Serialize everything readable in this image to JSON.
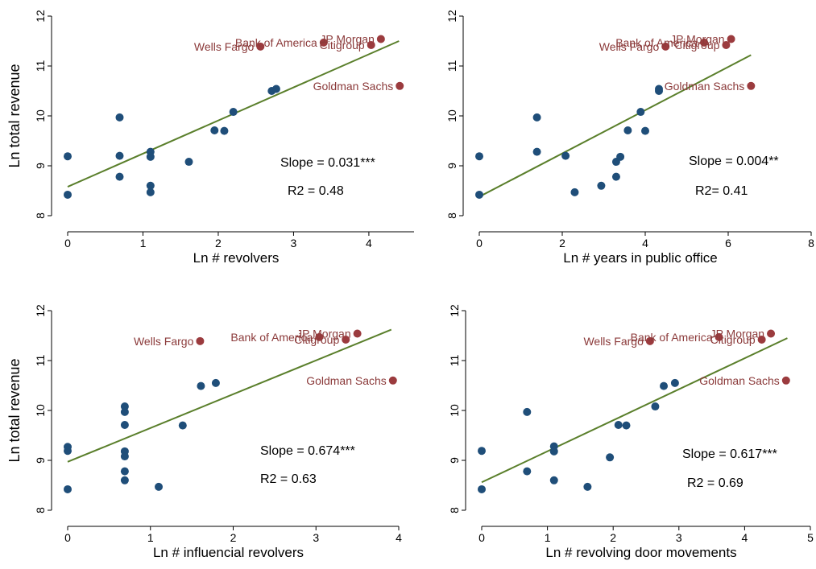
{
  "figure": {
    "colors": {
      "point": "#1f4e79",
      "highlight": "#9b3b3e",
      "fit_line": "#5a7f2b",
      "bank_label": "#8b3a3a",
      "axis": "#000000"
    }
  },
  "chart_data": [
    {
      "type": "scatter",
      "title": "",
      "xlabel": "Ln # revolvers",
      "ylabel": "Ln total revenue",
      "xlim": [
        0,
        4.6
      ],
      "ylim": [
        8,
        12
      ],
      "xticks": [
        0,
        1,
        2,
        3,
        4
      ],
      "yticks": [
        8,
        9,
        10,
        11,
        12
      ],
      "grid": false,
      "slope_text": "Slope = 0.031***",
      "r2_text": "R2 = 0.48",
      "fit_line": {
        "x": [
          0,
          4.4
        ],
        "y": [
          8.58,
          11.5
        ]
      },
      "points": [
        {
          "x": 0,
          "y": 9.19
        },
        {
          "x": 0,
          "y": 8.42
        },
        {
          "x": 0.69,
          "y": 9.97
        },
        {
          "x": 0.69,
          "y": 9.2
        },
        {
          "x": 0.69,
          "y": 8.78
        },
        {
          "x": 1.1,
          "y": 9.28
        },
        {
          "x": 1.1,
          "y": 9.18
        },
        {
          "x": 1.1,
          "y": 8.6
        },
        {
          "x": 1.1,
          "y": 8.47
        },
        {
          "x": 1.61,
          "y": 9.08
        },
        {
          "x": 1.95,
          "y": 9.71
        },
        {
          "x": 2.08,
          "y": 9.7
        },
        {
          "x": 2.2,
          "y": 10.08
        },
        {
          "x": 2.71,
          "y": 10.5
        },
        {
          "x": 2.77,
          "y": 10.54
        }
      ],
      "banks": [
        {
          "name": "Wells Fargo",
          "x": 2.56,
          "y": 11.39,
          "label_pos": "left"
        },
        {
          "name": "Bank of America",
          "x": 3.4,
          "y": 11.47,
          "label_pos": "left"
        },
        {
          "name": "JP Morgan",
          "x": 4.16,
          "y": 11.54,
          "label_pos": "left"
        },
        {
          "name": "Citigroup",
          "x": 4.03,
          "y": 11.42,
          "label_pos": "left"
        },
        {
          "name": "Goldman Sachs",
          "x": 4.41,
          "y": 10.6,
          "label_pos": "left"
        }
      ]
    },
    {
      "type": "scatter",
      "title": "",
      "xlabel": "Ln # years in public office",
      "ylabel": "",
      "xlim": [
        0,
        8
      ],
      "ylim": [
        8,
        12
      ],
      "xticks": [
        0,
        2,
        4,
        6,
        8
      ],
      "yticks": [
        8,
        9,
        10,
        11,
        12
      ],
      "grid": false,
      "slope_text": "Slope = 0.004**",
      "r2_text": "R2= 0.41",
      "fit_line": {
        "x": [
          0,
          6.55
        ],
        "y": [
          8.38,
          11.22
        ]
      },
      "points": [
        {
          "x": 0,
          "y": 9.19
        },
        {
          "x": 0,
          "y": 8.42
        },
        {
          "x": 1.39,
          "y": 9.97
        },
        {
          "x": 1.39,
          "y": 9.28
        },
        {
          "x": 2.08,
          "y": 9.2
        },
        {
          "x": 2.3,
          "y": 8.47
        },
        {
          "x": 2.94,
          "y": 8.6
        },
        {
          "x": 3.3,
          "y": 8.78
        },
        {
          "x": 3.3,
          "y": 9.08
        },
        {
          "x": 3.4,
          "y": 9.18
        },
        {
          "x": 3.58,
          "y": 9.71
        },
        {
          "x": 3.89,
          "y": 10.08
        },
        {
          "x": 4.0,
          "y": 9.7
        },
        {
          "x": 4.33,
          "y": 10.5
        },
        {
          "x": 4.33,
          "y": 10.54
        }
      ],
      "banks": [
        {
          "name": "Wells Fargo",
          "x": 4.49,
          "y": 11.39,
          "label_pos": "left"
        },
        {
          "name": "Bank of America",
          "x": 5.42,
          "y": 11.47,
          "label_pos": "left"
        },
        {
          "name": "JP Morgan",
          "x": 6.07,
          "y": 11.54,
          "label_pos": "left"
        },
        {
          "name": "Citigroup",
          "x": 5.95,
          "y": 11.42,
          "label_pos": "left"
        },
        {
          "name": "Goldman Sachs",
          "x": 6.55,
          "y": 10.6,
          "label_pos": "left"
        }
      ]
    },
    {
      "type": "scatter",
      "title": "",
      "xlabel": "Ln # influencial revolvers",
      "ylabel": "Ln total revenue",
      "xlim": [
        0,
        4
      ],
      "ylim": [
        8,
        12
      ],
      "xticks": [
        0,
        1,
        2,
        3,
        4
      ],
      "yticks": [
        8,
        9,
        10,
        11,
        12
      ],
      "grid": false,
      "slope_text": "Slope = 0.674***",
      "r2_text": "R2 = 0.63",
      "fit_line": {
        "x": [
          0,
          3.91
        ],
        "y": [
          8.97,
          11.62
        ]
      },
      "points": [
        {
          "x": 0,
          "y": 9.27
        },
        {
          "x": 0,
          "y": 9.19
        },
        {
          "x": 0,
          "y": 8.42
        },
        {
          "x": 0.69,
          "y": 10.08
        },
        {
          "x": 0.69,
          "y": 9.97
        },
        {
          "x": 0.69,
          "y": 9.71
        },
        {
          "x": 0.69,
          "y": 9.18
        },
        {
          "x": 0.69,
          "y": 9.08
        },
        {
          "x": 0.69,
          "y": 8.78
        },
        {
          "x": 0.69,
          "y": 8.6
        },
        {
          "x": 1.1,
          "y": 8.47
        },
        {
          "x": 1.39,
          "y": 9.7
        },
        {
          "x": 1.61,
          "y": 10.49
        },
        {
          "x": 1.79,
          "y": 10.55
        }
      ],
      "banks": [
        {
          "name": "Wells Fargo",
          "x": 1.6,
          "y": 11.39,
          "label_pos": "left"
        },
        {
          "name": "Bank of America",
          "x": 3.04,
          "y": 11.47,
          "label_pos": "left"
        },
        {
          "name": "JP Morgan",
          "x": 3.5,
          "y": 11.54,
          "label_pos": "left"
        },
        {
          "name": "Citigroup",
          "x": 3.36,
          "y": 11.42,
          "label_pos": "left"
        },
        {
          "name": "Goldman Sachs",
          "x": 3.93,
          "y": 10.6,
          "label_pos": "left"
        }
      ]
    },
    {
      "type": "scatter",
      "title": "",
      "xlabel": "Ln # revolving door movements",
      "ylabel": "",
      "xlim": [
        0,
        5
      ],
      "ylim": [
        8,
        12
      ],
      "xticks": [
        0,
        1,
        2,
        3,
        4,
        5
      ],
      "yticks": [
        8,
        9,
        10,
        11,
        12
      ],
      "grid": false,
      "slope_text": "Slope = 0.617***",
      "r2_text": "R2 = 0.69",
      "fit_line": {
        "x": [
          0,
          4.65
        ],
        "y": [
          8.56,
          11.45
        ]
      },
      "points": [
        {
          "x": 0,
          "y": 9.19
        },
        {
          "x": 0,
          "y": 8.42
        },
        {
          "x": 0.69,
          "y": 9.97
        },
        {
          "x": 0.69,
          "y": 8.78
        },
        {
          "x": 1.1,
          "y": 9.28
        },
        {
          "x": 1.1,
          "y": 9.18
        },
        {
          "x": 1.1,
          "y": 8.6
        },
        {
          "x": 1.61,
          "y": 8.47
        },
        {
          "x": 1.95,
          "y": 9.06
        },
        {
          "x": 2.08,
          "y": 9.71
        },
        {
          "x": 2.2,
          "y": 9.7
        },
        {
          "x": 2.64,
          "y": 10.08
        },
        {
          "x": 2.77,
          "y": 10.49
        },
        {
          "x": 2.94,
          "y": 10.55
        }
      ],
      "banks": [
        {
          "name": "Wells Fargo",
          "x": 2.56,
          "y": 11.39,
          "label_pos": "left"
        },
        {
          "name": "Bank of America",
          "x": 3.61,
          "y": 11.47,
          "label_pos": "left"
        },
        {
          "name": "JP Morgan",
          "x": 4.4,
          "y": 11.54,
          "label_pos": "left"
        },
        {
          "name": "Citigroup",
          "x": 4.26,
          "y": 11.42,
          "label_pos": "left"
        },
        {
          "name": "Goldman Sachs",
          "x": 4.63,
          "y": 10.6,
          "label_pos": "left"
        }
      ]
    }
  ]
}
